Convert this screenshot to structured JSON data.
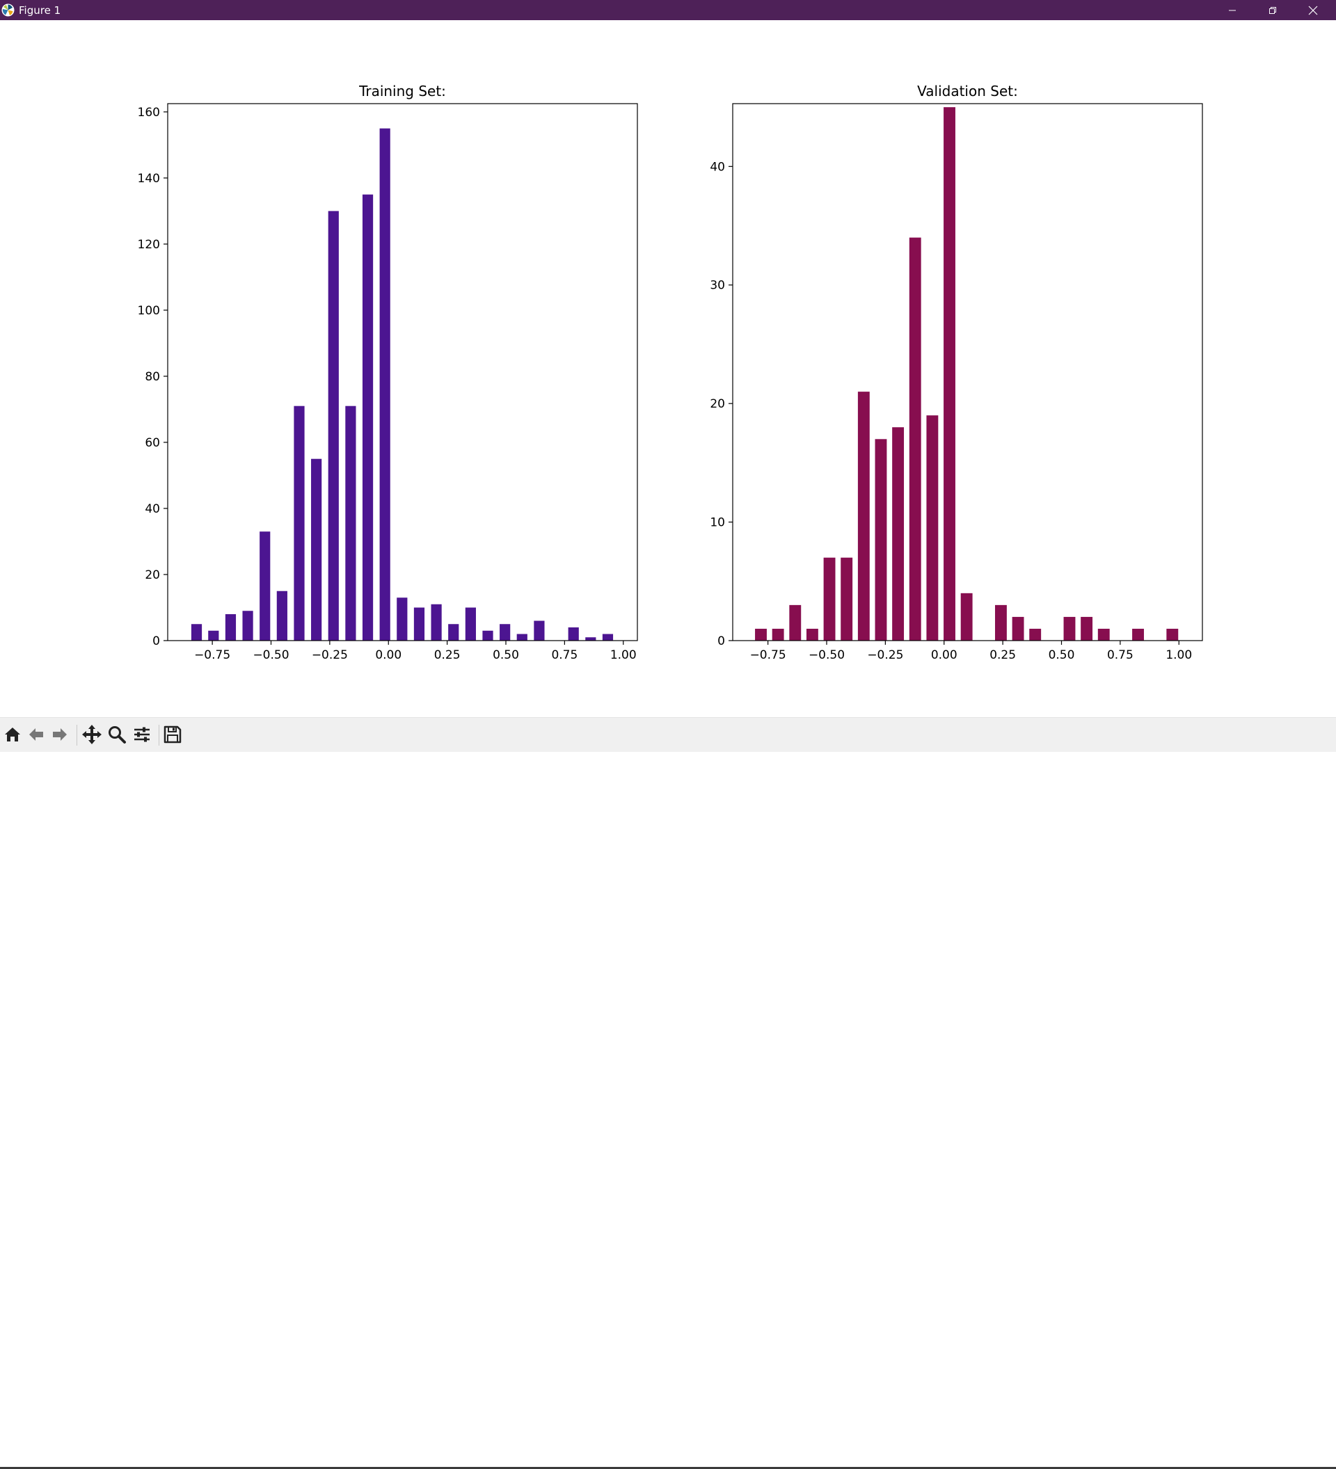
{
  "window": {
    "title": "Figure 1",
    "app_icon": "matplotlib-logo-icon",
    "controls": [
      "minimize-icon",
      "restore-icon",
      "close-icon"
    ]
  },
  "toolbar": {
    "buttons": [
      "home-icon",
      "back-arrow-icon",
      "forward-arrow-icon",
      "pan-move-icon",
      "zoom-magnifier-icon",
      "configure-subplots-icon",
      "save-icon"
    ]
  },
  "chart_data": [
    {
      "type": "bar",
      "title": "Training Set:",
      "xlabel": "",
      "ylabel": "",
      "color": "#4c1591",
      "bar_width": 0.045,
      "x": [
        -0.817,
        -0.745,
        -0.672,
        -0.599,
        -0.526,
        -0.453,
        -0.38,
        -0.307,
        -0.234,
        -0.161,
        -0.088,
        -0.015,
        0.058,
        0.131,
        0.204,
        0.277,
        0.35,
        0.423,
        0.496,
        0.569,
        0.642,
        0.715,
        0.788,
        0.861,
        0.934
      ],
      "values": [
        5,
        3,
        8,
        9,
        33,
        15,
        71,
        55,
        130,
        71,
        135,
        155,
        13,
        10,
        11,
        5,
        10,
        3,
        5,
        2,
        6,
        0,
        4,
        1,
        2
      ],
      "xlim": [
        -0.94,
        1.06
      ],
      "ylim": [
        0,
        162.5
      ],
      "xticks": [
        -0.75,
        -0.5,
        -0.25,
        0.0,
        0.25,
        0.5,
        0.75,
        1.0
      ],
      "xtick_labels": [
        "−0.75",
        "−0.50",
        "−0.25",
        "0.00",
        "0.25",
        "0.50",
        "0.75",
        "1.00"
      ],
      "yticks": [
        0,
        20,
        40,
        60,
        80,
        100,
        120,
        140,
        160
      ],
      "ytick_labels": [
        "0",
        "20",
        "40",
        "60",
        "80",
        "100",
        "120",
        "140",
        "160"
      ],
      "grid": false,
      "legend": "none"
    },
    {
      "type": "bar",
      "title": "Validation Set:",
      "xlabel": "",
      "ylabel": "",
      "color": "#870e4f",
      "bar_width": 0.05,
      "x": [
        -0.78,
        -0.707,
        -0.634,
        -0.561,
        -0.488,
        -0.415,
        -0.342,
        -0.269,
        -0.196,
        -0.123,
        -0.05,
        0.023,
        0.096,
        0.169,
        0.242,
        0.315,
        0.388,
        0.461,
        0.534,
        0.607,
        0.68,
        0.753,
        0.826,
        0.899,
        0.972
      ],
      "values": [
        1,
        1,
        3,
        1,
        7,
        7,
        21,
        17,
        18,
        34,
        19,
        45,
        4,
        0,
        3,
        2,
        1,
        0,
        2,
        2,
        1,
        0,
        1,
        0,
        1
      ],
      "xlim": [
        -0.9,
        1.1
      ],
      "ylim": [
        0,
        45.3
      ],
      "xticks": [
        -0.75,
        -0.5,
        -0.25,
        0.0,
        0.25,
        0.5,
        0.75,
        1.0
      ],
      "xtick_labels": [
        "−0.75",
        "−0.50",
        "−0.25",
        "0.00",
        "0.25",
        "0.50",
        "0.75",
        "1.00"
      ],
      "yticks": [
        0,
        10,
        20,
        30,
        40
      ],
      "ytick_labels": [
        "0",
        "10",
        "20",
        "30",
        "40"
      ],
      "grid": false,
      "legend": "none"
    }
  ]
}
